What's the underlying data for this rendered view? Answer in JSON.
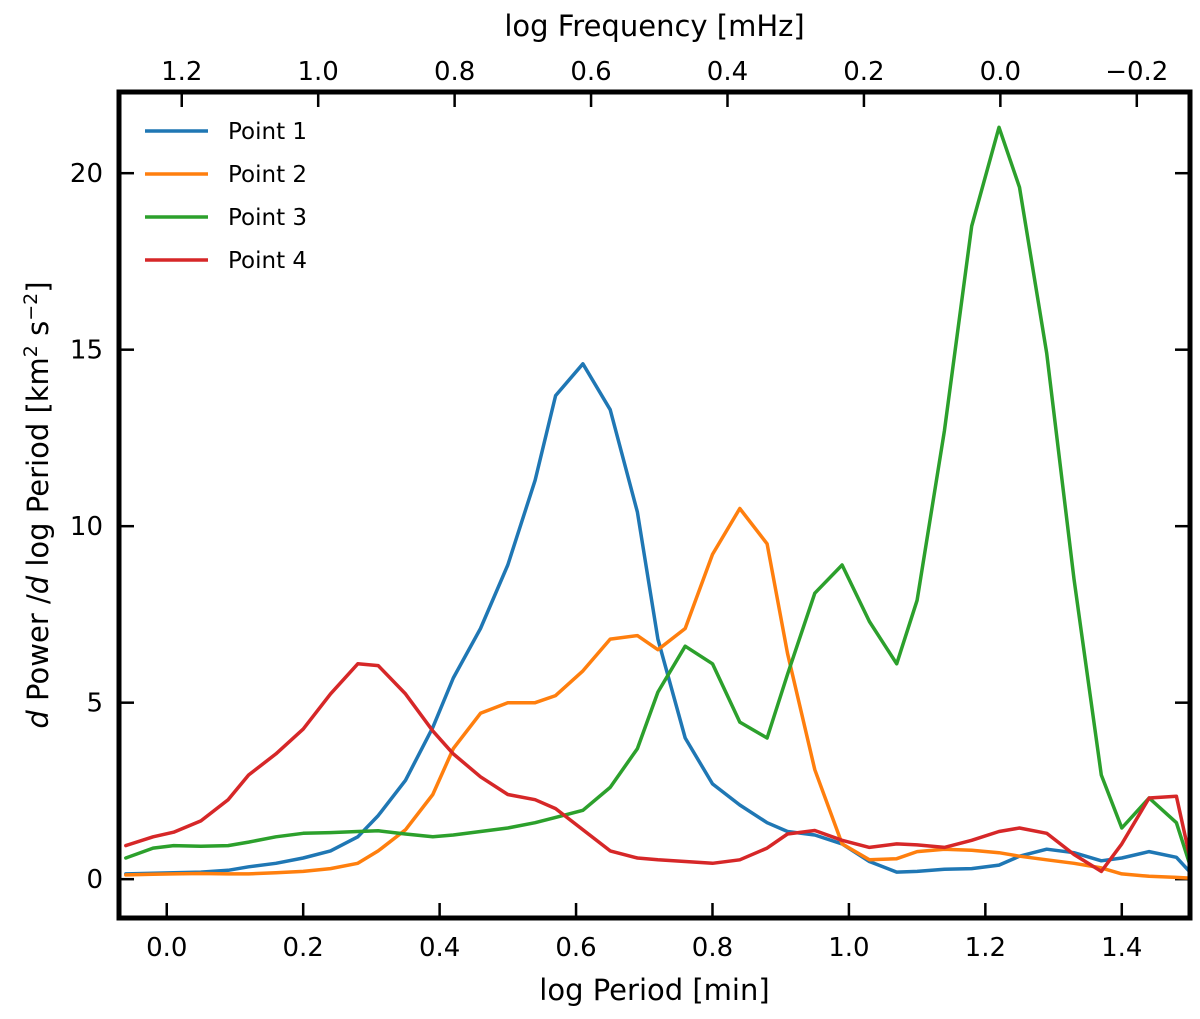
{
  "chart_data": {
    "type": "line",
    "xlabel": "log Period [min]",
    "ylabel": "d Power /d log Period [km² s⁻²]",
    "ylabel_parts": {
      "d1": "d",
      "mid": " Power /",
      "d2": "d",
      "rest": " log Period [km",
      "sup1": "2",
      "s": " s",
      "sup2": "−2",
      "end": "]"
    },
    "x2label": "log Frequency [mHz]",
    "xlim": [
      -0.07,
      1.5
    ],
    "ylim": [
      -1.1,
      22.3
    ],
    "xticks": [
      0.0,
      0.2,
      0.4,
      0.6,
      0.8,
      1.0,
      1.2,
      1.4
    ],
    "xtick_labels": [
      "0.0",
      "0.2",
      "0.4",
      "0.6",
      "0.8",
      "1.0",
      "1.2",
      "1.4"
    ],
    "yticks": [
      0,
      5,
      10,
      15,
      20
    ],
    "ytick_labels": [
      "0",
      "5",
      "10",
      "15",
      "20"
    ],
    "x2ticks": [
      1.2,
      1.0,
      0.8,
      0.6,
      0.4,
      0.2,
      0.0,
      -0.2
    ],
    "x2tick_labels": [
      "1.2",
      "1.0",
      "0.8",
      "0.6",
      "0.4",
      "0.2",
      "0.0",
      "−0.2"
    ],
    "x2_relation": "log Frequency = 1.222 − log Period",
    "grid": false,
    "legend": {
      "position": "top-left"
    },
    "x": [
      -0.06,
      -0.02,
      0.01,
      0.05,
      0.09,
      0.12,
      0.16,
      0.2,
      0.24,
      0.28,
      0.31,
      0.35,
      0.39,
      0.42,
      0.46,
      0.5,
      0.54,
      0.57,
      0.61,
      0.65,
      0.69,
      0.72,
      0.76,
      0.8,
      0.84,
      0.88,
      0.91,
      0.95,
      0.99,
      1.03,
      1.07,
      1.1,
      1.14,
      1.18,
      1.22,
      1.25,
      1.29,
      1.33,
      1.37,
      1.4,
      1.44,
      1.48,
      1.5
    ],
    "series": [
      {
        "name": "Point 1",
        "color": "#1f77b4",
        "values": [
          0.15,
          0.17,
          0.18,
          0.2,
          0.25,
          0.35,
          0.45,
          0.6,
          0.8,
          1.2,
          1.8,
          2.8,
          4.3,
          5.7,
          7.1,
          8.9,
          11.3,
          13.7,
          14.6,
          13.3,
          10.4,
          6.8,
          4.0,
          2.7,
          2.1,
          1.6,
          1.35,
          1.25,
          1.0,
          0.5,
          0.2,
          0.22,
          0.28,
          0.3,
          0.4,
          0.65,
          0.85,
          0.75,
          0.52,
          0.6,
          0.78,
          0.62,
          0.2
        ]
      },
      {
        "name": "Point 2",
        "color": "#ff7f0e",
        "values": [
          0.12,
          0.14,
          0.15,
          0.16,
          0.15,
          0.15,
          0.18,
          0.22,
          0.3,
          0.45,
          0.8,
          1.4,
          2.4,
          3.7,
          4.7,
          5.0,
          5.0,
          5.2,
          5.9,
          6.8,
          6.9,
          6.5,
          7.1,
          9.2,
          10.5,
          9.5,
          6.4,
          3.1,
          1.0,
          0.55,
          0.58,
          0.78,
          0.85,
          0.82,
          0.75,
          0.65,
          0.55,
          0.45,
          0.32,
          0.15,
          0.08,
          0.05,
          0.03
        ]
      },
      {
        "name": "Point 3",
        "color": "#2ca02c",
        "values": [
          0.6,
          0.88,
          0.95,
          0.93,
          0.95,
          1.05,
          1.2,
          1.3,
          1.32,
          1.35,
          1.37,
          1.28,
          1.2,
          1.25,
          1.35,
          1.45,
          1.6,
          1.75,
          1.95,
          2.6,
          3.7,
          5.3,
          6.6,
          6.1,
          4.45,
          4.0,
          5.8,
          8.1,
          8.9,
          7.3,
          6.1,
          7.9,
          12.7,
          18.5,
          21.3,
          19.6,
          14.9,
          8.5,
          2.95,
          1.45,
          2.3,
          1.6,
          0.4
        ]
      },
      {
        "name": "Point 4",
        "color": "#d62728",
        "values": [
          0.95,
          1.2,
          1.33,
          1.65,
          2.25,
          2.95,
          3.55,
          4.25,
          5.25,
          6.1,
          6.05,
          5.25,
          4.2,
          3.55,
          2.9,
          2.4,
          2.25,
          2.0,
          1.4,
          0.8,
          0.6,
          0.55,
          0.5,
          0.45,
          0.55,
          0.88,
          1.28,
          1.38,
          1.1,
          0.9,
          1.0,
          0.97,
          0.9,
          1.1,
          1.35,
          1.45,
          1.3,
          0.7,
          0.22,
          1.0,
          2.3,
          2.35,
          0.6
        ]
      }
    ]
  }
}
